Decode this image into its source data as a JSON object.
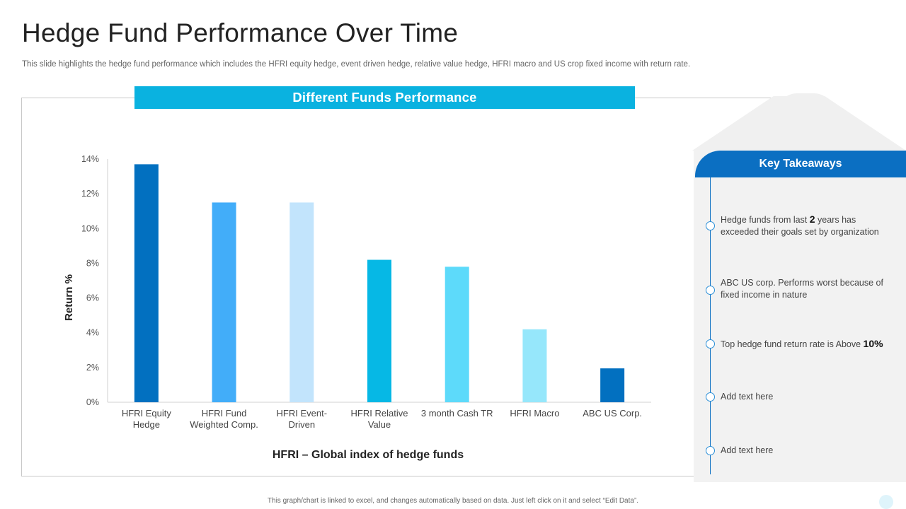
{
  "page": {
    "title": "Hedge Fund Performance Over Time",
    "subtitle": "This slide highlights the hedge fund performance which includes the HFRI equity hedge, event driven hedge, relative value hedge, HFRI macro and US crop fixed income with return rate.",
    "footer": "This graph/chart is linked to excel, and changes automatically based on data. Just left click on it and select “Edit Data”."
  },
  "chart_header": "Different Funds Performance",
  "chart_data": {
    "type": "bar",
    "title": "Different Funds Performance",
    "xlabel": "HFRI – Global index of hedge funds",
    "ylabel": "Return %",
    "ylim": [
      0,
      14
    ],
    "yticks": [
      0,
      2,
      4,
      6,
      8,
      10,
      12,
      14
    ],
    "ytick_labels": [
      "0%",
      "2%",
      "4%",
      "6%",
      "8%",
      "10%",
      "12%",
      "14%"
    ],
    "grid": false,
    "categories": [
      [
        "HFRI Equity",
        "Hedge"
      ],
      [
        "HFRI Fund",
        "Weighted Comp."
      ],
      [
        "HFRI Event-",
        "Driven"
      ],
      [
        "HFRI Relative",
        "Value"
      ],
      [
        "3 month Cash TR"
      ],
      [
        "HFRI Macro"
      ],
      [
        "ABC US Corp."
      ]
    ],
    "values": [
      13.7,
      11.5,
      11.5,
      8.2,
      7.8,
      4.2,
      1.95
    ],
    "colors": [
      "#0270c0",
      "#42adf9",
      "#c2e4fc",
      "#06b8e5",
      "#5ddafa",
      "#96e7fb",
      "#0270c0"
    ]
  },
  "takeaways": {
    "title": "Key Takeaways",
    "items": [
      {
        "pre": "Hedge funds from last ",
        "bold": "2",
        "post": " years has exceeded their goals set by organization"
      },
      {
        "pre": "ABC US corp. Performs worst because of fixed income in nature",
        "bold": "",
        "post": ""
      },
      {
        "pre": "Top hedge fund return rate is Above ",
        "bold": "10%",
        "post": ""
      },
      {
        "pre": "Add text here",
        "bold": "",
        "post": ""
      },
      {
        "pre": "Add text here",
        "bold": "",
        "post": ""
      }
    ]
  },
  "colors": {
    "accent": "#0ab2e0",
    "panel_header": "#0b6fc2",
    "panel_bg": "#f2f2f2"
  }
}
